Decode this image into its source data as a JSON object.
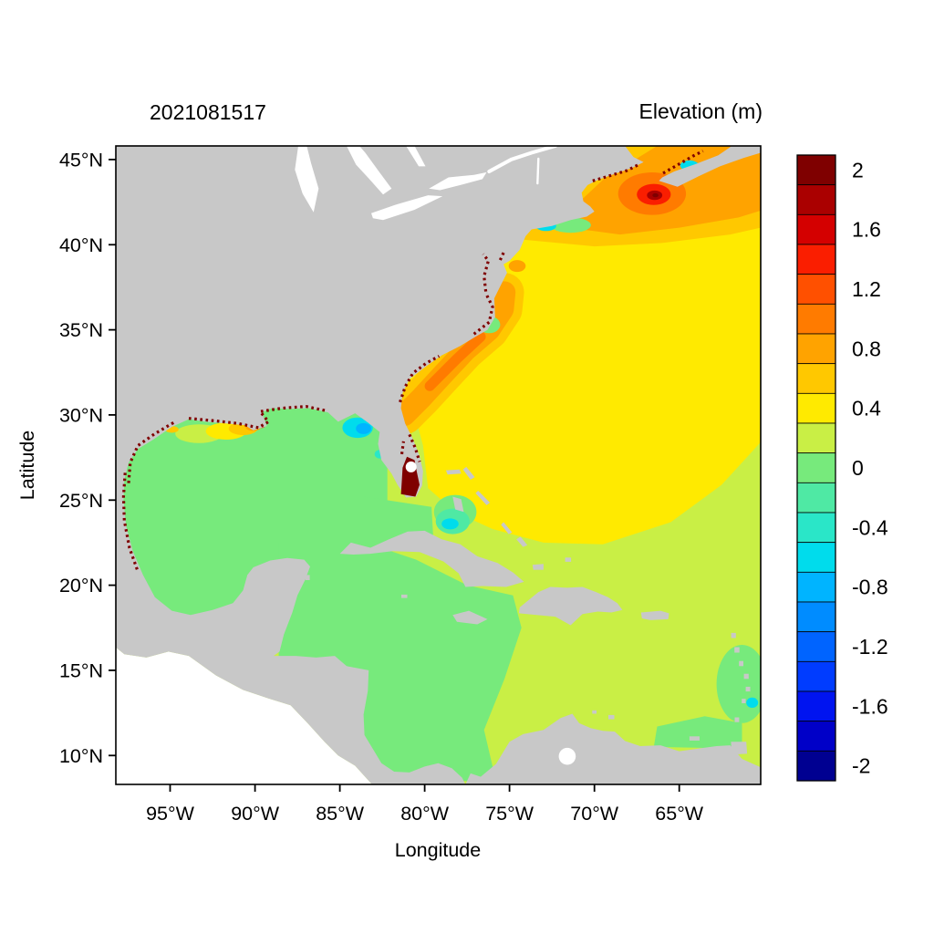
{
  "figure": {
    "background": "#ffffff"
  },
  "chart_data": {
    "type": "heatmap",
    "titles": {
      "left": "2021081517",
      "right": "Elevation (m)"
    },
    "xlabel": "Longitude",
    "ylabel": "Latitude",
    "xlim": [
      -98.2,
      -60.2
    ],
    "ylim": [
      8.3,
      45.8
    ],
    "grid": false,
    "land_color": "#c8c8c8",
    "outside_domain_color": "#ffffff",
    "border_color": "#000000",
    "xticks": [
      {
        "value": -95,
        "label": "95°W"
      },
      {
        "value": -90,
        "label": "90°W"
      },
      {
        "value": -85,
        "label": "85°W"
      },
      {
        "value": -80,
        "label": "80°W"
      },
      {
        "value": -75,
        "label": "75°W"
      },
      {
        "value": -70,
        "label": "70°W"
      },
      {
        "value": -65,
        "label": "65°W"
      }
    ],
    "yticks": [
      {
        "value": 45,
        "label": "45°N"
      },
      {
        "value": 40,
        "label": "40°N"
      },
      {
        "value": 35,
        "label": "35°N"
      },
      {
        "value": 30,
        "label": "30°N"
      },
      {
        "value": 25,
        "label": "25°N"
      },
      {
        "value": 20,
        "label": "20°N"
      },
      {
        "value": 15,
        "label": "15°N"
      },
      {
        "value": 10,
        "label": "10°N"
      }
    ],
    "colorbar": {
      "min": -2.1,
      "max": 2.1,
      "step": 0.2,
      "tick_labels": [
        {
          "value": 2,
          "label": "2"
        },
        {
          "value": 1.6,
          "label": "1.6"
        },
        {
          "value": 1.2,
          "label": "1.2"
        },
        {
          "value": 0.8,
          "label": "0.8"
        },
        {
          "value": 0.4,
          "label": "0.4"
        },
        {
          "value": 0,
          "label": "0"
        },
        {
          "value": -0.4,
          "label": "-0.4"
        },
        {
          "value": -0.8,
          "label": "-0.8"
        },
        {
          "value": -1.2,
          "label": "-1.2"
        },
        {
          "value": -1.6,
          "label": "-1.6"
        },
        {
          "value": -2,
          "label": "-2"
        }
      ],
      "colors_top_to_bottom": [
        "#7f0000",
        "#aa0000",
        "#d40000",
        "#fa1e00",
        "#ff5000",
        "#ff7b00",
        "#ffa300",
        "#ffc800",
        "#ffea00",
        "#c9ef45",
        "#77ea7c",
        "#4fe9a4",
        "#2ae6c8",
        "#00dcec",
        "#00b4ff",
        "#008cff",
        "#0064ff",
        "#003cff",
        "#0014f0",
        "#0000c8",
        "#000091"
      ]
    },
    "regions": [
      {
        "name": "domain-base",
        "value": 0.3
      },
      {
        "name": "atlantic-open",
        "value": 0.5
      },
      {
        "name": "gulf-stream-band",
        "value": 0.65
      },
      {
        "name": "gulf-stream-core",
        "value": 0.85
      },
      {
        "name": "gulf-stream-peak",
        "value": 1.05
      },
      {
        "name": "northeast-transition",
        "value": 0.65
      },
      {
        "name": "northeast-high",
        "value": 0.9
      },
      {
        "name": "georges-bank-ring",
        "value": 1.0
      },
      {
        "name": "georges-bank-core",
        "value": 1.45
      },
      {
        "name": "georges-bank-peak",
        "value": 1.9
      },
      {
        "name": "georges-bank-max",
        "value": 2.05
      },
      {
        "name": "delmarva-high",
        "value": 0.85
      },
      {
        "name": "gulf-of-mexico",
        "value": 0.05
      },
      {
        "name": "florida-straits",
        "value": 0.05
      },
      {
        "name": "bahama-bank-west",
        "value": 0.05
      },
      {
        "name": "caribbean-west",
        "value": 0.05
      },
      {
        "name": "venezuela-coast",
        "value": 0.05
      },
      {
        "name": "antilles-east",
        "value": 0.05
      },
      {
        "name": "louisiana-shelf-outer",
        "value": 0.3
      },
      {
        "name": "louisiana-shelf",
        "value": 0.5
      },
      {
        "name": "louisiana-shelf-inner",
        "value": 0.65
      },
      {
        "name": "mississippi-delta",
        "value": 0.85
      },
      {
        "name": "mississippi-delta-peak",
        "value": 1.45
      },
      {
        "name": "galveston-shelf",
        "value": 0.65
      },
      {
        "name": "big-bend-low",
        "value": -0.5
      },
      {
        "name": "big-bend-core",
        "value": -0.85
      },
      {
        "name": "tampa-bay-low",
        "value": -0.45
      },
      {
        "name": "bahamas-low",
        "value": -0.3
      },
      {
        "name": "bahamas-core",
        "value": -0.65
      },
      {
        "name": "pamlico-sound",
        "value": 0.05
      },
      {
        "name": "long-island-shelf",
        "value": 0.05
      },
      {
        "name": "long-island-low",
        "value": -0.5
      },
      {
        "name": "fundy-mouth-low",
        "value": -0.55
      },
      {
        "name": "windward-isles-low",
        "value": -0.55
      }
    ],
    "flood_overlays": [
      {
        "name": "south-florida-flood",
        "value": 2.05
      }
    ],
    "coastal_speckles": [
      {
        "name": "speckle-texas-coast",
        "value": 2.05
      },
      {
        "name": "speckle-louisiana-coast",
        "value": 2.05
      },
      {
        "name": "speckle-mexico-coast",
        "value": 2.05
      },
      {
        "name": "speckle-georgia-coast",
        "value": 2.05
      },
      {
        "name": "speckle-carolina-sounds",
        "value": 2.05
      },
      {
        "name": "speckle-chesapeake",
        "value": 2.05
      },
      {
        "name": "speckle-delaware",
        "value": 2.05
      },
      {
        "name": "speckle-florida-lagoon",
        "value": 2.05
      },
      {
        "name": "speckle-kissimmee",
        "value": 2.05
      },
      {
        "name": "speckle-maine-coast",
        "value": 2.05
      },
      {
        "name": "speckle-nova-scotia",
        "value": 2.05
      }
    ]
  }
}
